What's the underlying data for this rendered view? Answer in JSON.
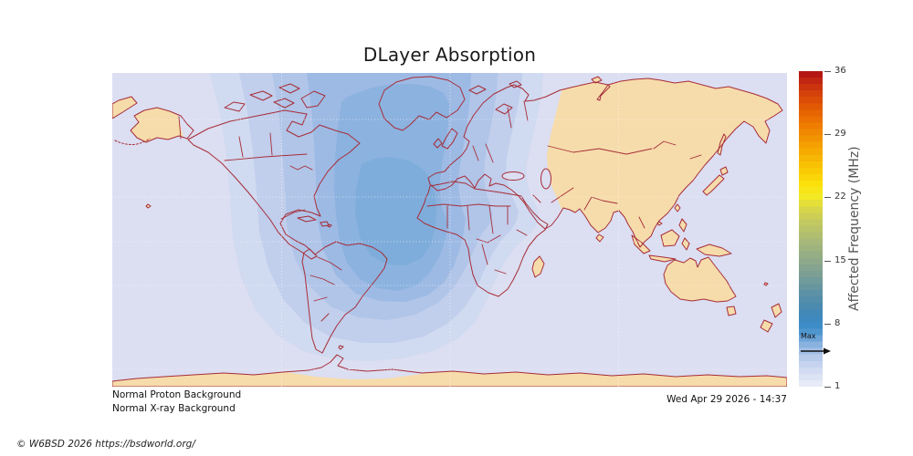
{
  "figure": {
    "title": "DLayer Absorption"
  },
  "footer": {
    "proton_status": "Normal Proton Background",
    "xray_status": "Normal X-ray Background",
    "timestamp": "Wed Apr 29 2026 - 14:37",
    "copyright": "© W6BSD 2026 https://bsdworld.org/"
  },
  "colorbar": {
    "label": "Affected Frequency (MHz)",
    "min": 1,
    "max": 36,
    "ticks": [
      36,
      29,
      22,
      15,
      8,
      1
    ],
    "max_marker": {
      "label": "Max",
      "value": 5.6
    },
    "gradient": [
      {
        "p": 0.0,
        "c": "#edeffa"
      },
      {
        "p": 0.02,
        "c": "#e2e7f6"
      },
      {
        "p": 0.045,
        "c": "#d4ddf2"
      },
      {
        "p": 0.07,
        "c": "#c6d4ee"
      },
      {
        "p": 0.095,
        "c": "#b4c9e9"
      },
      {
        "p": 0.115,
        "c": "#9fbde4"
      },
      {
        "p": 0.135,
        "c": "#86b0de"
      },
      {
        "p": 0.155,
        "c": "#68a2d6"
      },
      {
        "p": 0.175,
        "c": "#4d95cd"
      },
      {
        "p": 0.2,
        "c": "#3a8ac7"
      },
      {
        "p": 0.24,
        "c": "#4489b4"
      },
      {
        "p": 0.3,
        "c": "#5f92a4"
      },
      {
        "p": 0.36,
        "c": "#7da093"
      },
      {
        "p": 0.4,
        "c": "#8fa98a"
      },
      {
        "p": 0.46,
        "c": "#a7b878"
      },
      {
        "p": 0.52,
        "c": "#c2c960"
      },
      {
        "p": 0.57,
        "c": "#dcd844"
      },
      {
        "p": 0.6,
        "c": "#f3ea26"
      },
      {
        "p": 0.64,
        "c": "#fbe10b"
      },
      {
        "p": 0.7,
        "c": "#f9c303"
      },
      {
        "p": 0.76,
        "c": "#f5a302"
      },
      {
        "p": 0.82,
        "c": "#ef8101"
      },
      {
        "p": 0.88,
        "c": "#e55e03"
      },
      {
        "p": 0.93,
        "c": "#d4400a"
      },
      {
        "p": 0.97,
        "c": "#c02612"
      },
      {
        "p": 1.0,
        "c": "#b01015"
      }
    ]
  },
  "map": {
    "ocean_color": "#dcdef2",
    "land_color": "#f6dcab",
    "border_color": "#a62d38",
    "gridline_color": "#ffffff",
    "absorption_levels": [
      "#dcdef1",
      "#d0daf0",
      "#c1ceec",
      "#b0c5e8",
      "#9dbae4",
      "#8cb2df",
      "#7eaddb"
    ]
  }
}
